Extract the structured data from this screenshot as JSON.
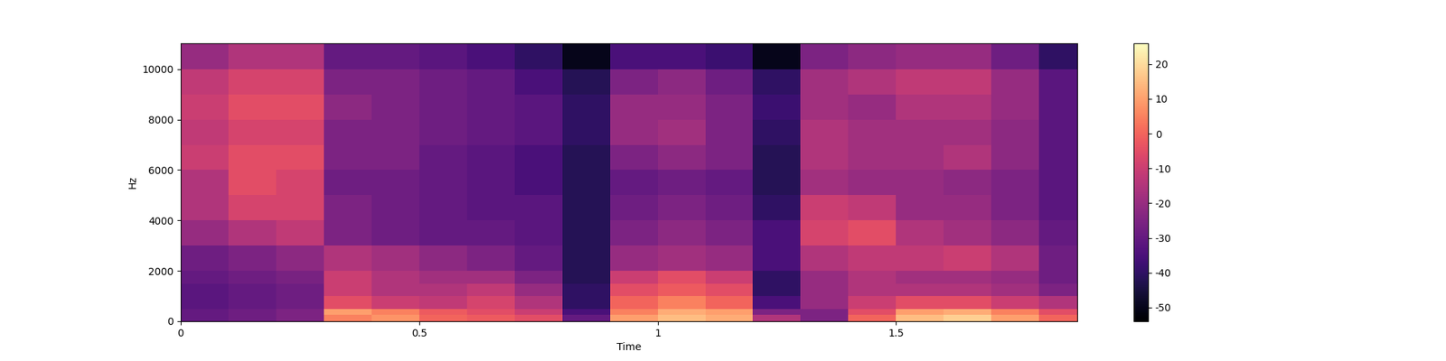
{
  "chart_data": {
    "type": "heatmap",
    "x_label": "Time",
    "y_label": "Hz",
    "xlim": [
      0,
      1.88
    ],
    "ylim": [
      0,
      11025
    ],
    "xticks": [
      0,
      0.5,
      1,
      1.5
    ],
    "yticks": [
      0,
      2000,
      4000,
      6000,
      8000,
      10000
    ],
    "x_edges": [
      0,
      0.1,
      0.2,
      0.3,
      0.4,
      0.5,
      0.6,
      0.7,
      0.8,
      0.9,
      1.0,
      1.1,
      1.2,
      1.3,
      1.4,
      1.5,
      1.6,
      1.7,
      1.8,
      1.88
    ],
    "y_edges": [
      0,
      250,
      500,
      1000,
      1500,
      2000,
      3000,
      4000,
      5000,
      6000,
      7000,
      8000,
      9000,
      10000,
      11025
    ],
    "cells": [
      [
        -30,
        -28,
        -25,
        5,
        8,
        0,
        -2,
        -5,
        -30,
        10,
        15,
        12,
        -15,
        -25,
        0,
        15,
        18,
        10,
        0
      ],
      [
        -30,
        -28,
        -25,
        10,
        5,
        -2,
        -5,
        -10,
        -35,
        5,
        12,
        10,
        -25,
        -25,
        -5,
        10,
        12,
        5,
        -5
      ],
      [
        -32,
        -30,
        -28,
        -5,
        -10,
        -12,
        -8,
        -15,
        -40,
        0,
        5,
        0,
        -35,
        -20,
        -10,
        -5,
        -5,
        -10,
        -15
      ],
      [
        -32,
        -30,
        -28,
        -10,
        -15,
        -15,
        -12,
        -20,
        -40,
        -5,
        -2,
        -5,
        -40,
        -20,
        -15,
        -15,
        -15,
        -18,
        -25
      ],
      [
        -30,
        -28,
        -26,
        -10,
        -15,
        -18,
        -18,
        -25,
        -42,
        -10,
        -5,
        -10,
        -40,
        -20,
        -15,
        -18,
        -18,
        -20,
        -28
      ],
      [
        -28,
        -25,
        -22,
        -15,
        -18,
        -22,
        -25,
        -30,
        -42,
        -20,
        -18,
        -20,
        -35,
        -15,
        -12,
        -12,
        -10,
        -15,
        -28
      ],
      [
        -20,
        -15,
        -12,
        -25,
        -28,
        -30,
        -30,
        -32,
        -42,
        -25,
        -22,
        -25,
        -35,
        -8,
        -5,
        -15,
        -18,
        -22,
        -30
      ],
      [
        -15,
        -8,
        -8,
        -25,
        -28,
        -30,
        -32,
        -32,
        -42,
        -28,
        -25,
        -28,
        -40,
        -10,
        -12,
        -20,
        -20,
        -25,
        -32
      ],
      [
        -15,
        -5,
        -8,
        -28,
        -28,
        -30,
        -32,
        -35,
        -42,
        -30,
        -28,
        -30,
        -42,
        -18,
        -20,
        -20,
        -22,
        -25,
        -32
      ],
      [
        -10,
        -5,
        -5,
        -25,
        -25,
        -30,
        -32,
        -35,
        -42,
        -25,
        -22,
        -25,
        -42,
        -15,
        -18,
        -18,
        -15,
        -22,
        -32
      ],
      [
        -12,
        -8,
        -8,
        -25,
        -25,
        -28,
        -30,
        -32,
        -40,
        -20,
        -18,
        -25,
        -40,
        -15,
        -18,
        -18,
        -18,
        -22,
        -32
      ],
      [
        -10,
        -5,
        -5,
        -22,
        -25,
        -28,
        -30,
        -32,
        -40,
        -20,
        -20,
        -25,
        -38,
        -18,
        -20,
        -15,
        -15,
        -20,
        -32
      ],
      [
        -12,
        -8,
        -8,
        -25,
        -25,
        -28,
        -30,
        -35,
        -42,
        -25,
        -22,
        -28,
        -40,
        -18,
        -15,
        -12,
        -12,
        -20,
        -32
      ],
      [
        -20,
        -15,
        -15,
        -30,
        -30,
        -32,
        -35,
        -40,
        -50,
        -35,
        -35,
        -38,
        -50,
        -25,
        -22,
        -20,
        -20,
        -28,
        -40
      ]
    ],
    "colorbar": {
      "range": [
        -54,
        26
      ],
      "ticks": [
        20,
        10,
        0,
        -10,
        -20,
        -30,
        -40,
        -50
      ]
    }
  }
}
